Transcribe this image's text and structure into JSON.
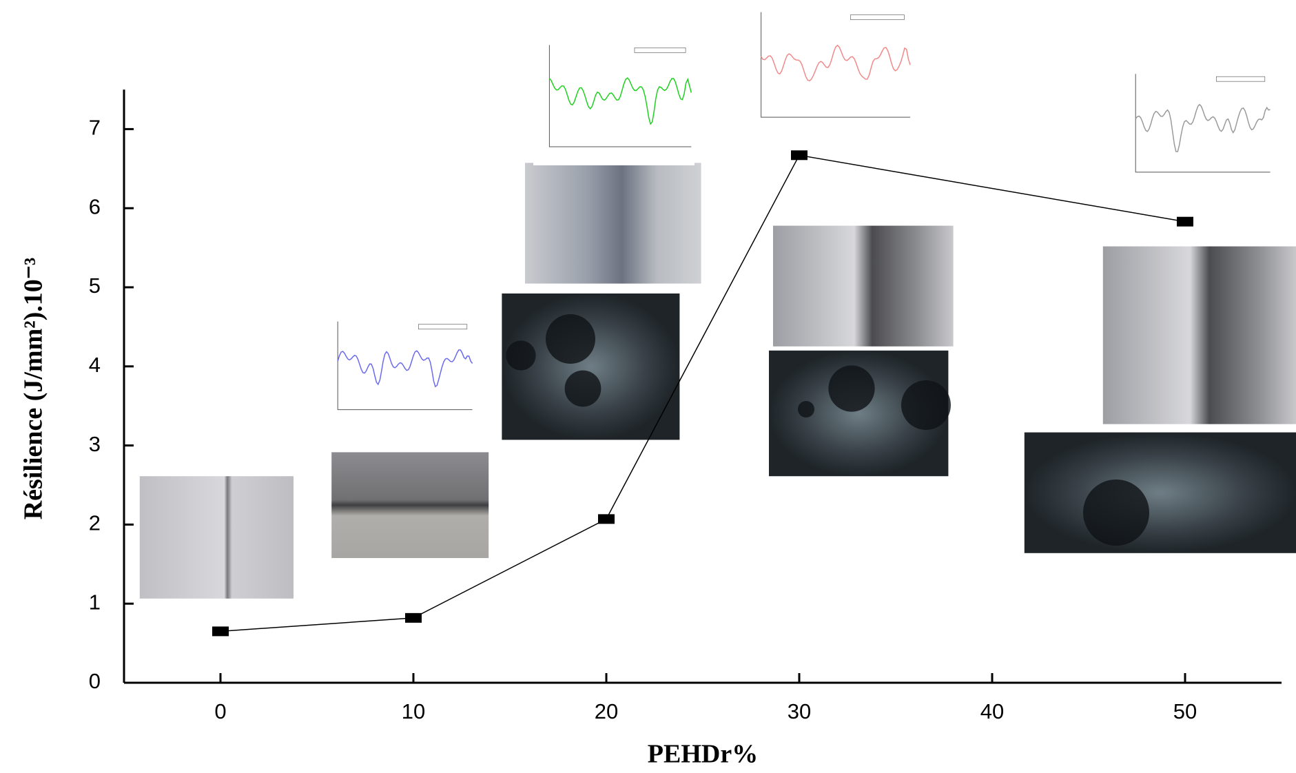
{
  "chart_data": {
    "type": "line",
    "x_label": "PEHDr%",
    "y_label": "Résilience (J/mm²).10⁻³",
    "x": [
      0,
      10,
      20,
      30,
      50
    ],
    "series": [
      {
        "name": "Résilience",
        "color": "#000000",
        "values": [
          0.65,
          0.82,
          2.07,
          6.67,
          5.83
        ]
      }
    ],
    "xlim": [
      -5,
      55
    ],
    "xticks": [
      0,
      10,
      20,
      30,
      40,
      50
    ],
    "ylim": [
      0,
      7.5
    ],
    "yticks": [
      0,
      1,
      2,
      3,
      4,
      5,
      6,
      7
    ],
    "grid": false
  }
}
